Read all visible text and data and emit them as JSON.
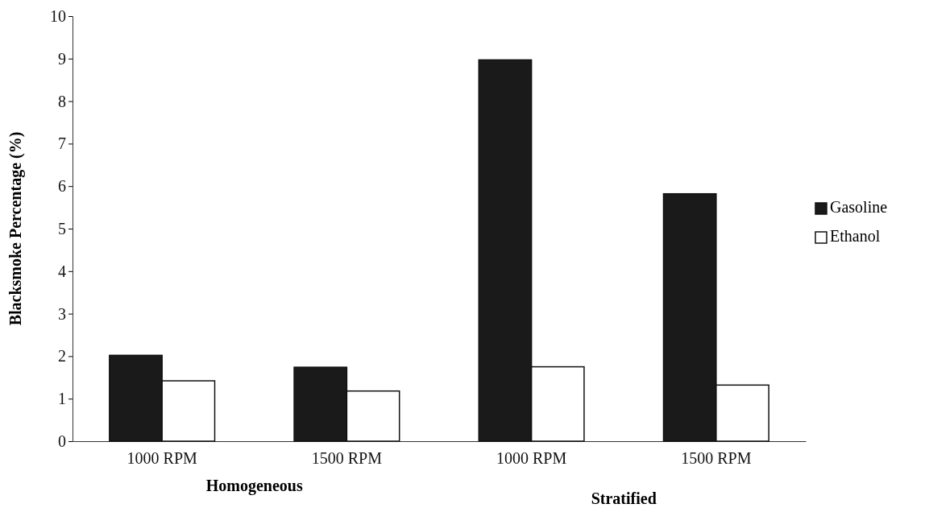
{
  "chart_data": {
    "type": "bar",
    "ylabel": "Blacksmoke Percentage (%)",
    "categories": [
      "1000 RPM",
      "1500 RPM",
      "1000 RPM",
      "1500 RPM"
    ],
    "series": [
      {
        "name": "Gasoline",
        "color": "#1a1a1a",
        "values": [
          2.02,
          1.74,
          8.97,
          5.82
        ]
      },
      {
        "name": "Ethanol",
        "color": "#ffffff",
        "values": [
          1.42,
          1.18,
          1.75,
          1.32
        ]
      }
    ],
    "ylim": [
      0,
      10
    ],
    "yticks": [
      0,
      1,
      2,
      3,
      4,
      5,
      6,
      7,
      8,
      9,
      10
    ],
    "grid": false,
    "legend": "right",
    "annotations": [
      "Homogeneous",
      "Stratified"
    ]
  }
}
